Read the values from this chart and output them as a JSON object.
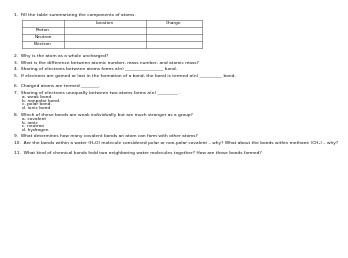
{
  "bg_color": "#ffffff",
  "text_color": "#111111",
  "line_color": "#555555",
  "q1_label": "1.  Fill the table summarizing the components of atoms.",
  "table_headers": [
    "",
    "Location",
    "Charge"
  ],
  "table_rows": [
    "Proton",
    "Neutron",
    "Electron"
  ],
  "questions": [
    {
      "num": "2.",
      "text": "Why is the atom as a whole uncharged?",
      "sub": []
    },
    {
      "num": "3.",
      "text": "What is the difference between atomic number, mass number, and atomic mass?",
      "sub": []
    },
    {
      "num": "4.",
      "text": "Sharing of electrons between atoms forms a(n) _________________ bond.",
      "sub": []
    },
    {
      "num": "5.",
      "text": "If electrons are gained or lost in the formation of a bond, the bond is termed a(n) __________ bond.",
      "sub": []
    },
    {
      "num": "6.",
      "text": "Charged atoms are termed ________.",
      "sub": []
    },
    {
      "num": "7.",
      "text": "Sharing of electrons unequally between two atoms forms a(n) _________ .",
      "sub": [
        "a. weak bond.",
        "b. nonpolar bond.",
        "c. polar bond.",
        "d. ionic bond"
      ]
    },
    {
      "num": "8.",
      "text": "Which of these bonds are weak individually but are much stronger as a group?",
      "sub": [
        "a. covalent",
        "b. ionic",
        "c. neutron",
        "d. hydrogen"
      ]
    },
    {
      "num": "9.",
      "text": "What determines how many covalent bonds an atom can form with other atoms?",
      "sub": []
    },
    {
      "num": "10.",
      "text": "Are the bonds within a water (H₂O) molecule considered polar or non-polar covalent – why? What about the bonds within methane (CH₄) – why?",
      "sub": []
    },
    {
      "num": "11.",
      "text": "What kind of chemical bonds hold two neighboring water molecules together? How are those bonds formed?",
      "sub": []
    }
  ],
  "font_size": 3.2,
  "sub_indent": 8
}
